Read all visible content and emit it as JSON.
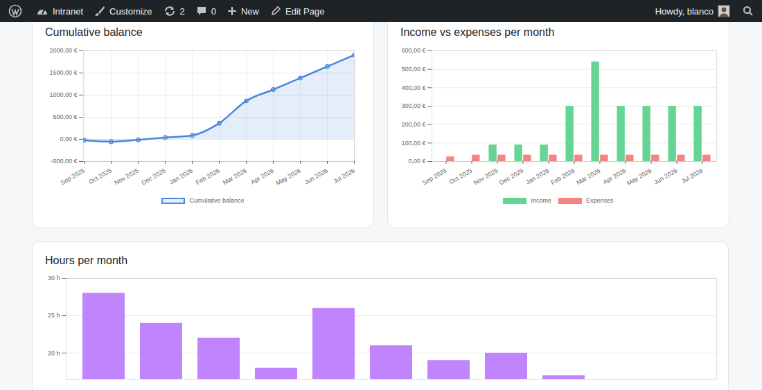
{
  "admin_bar": {
    "items": [
      "Intranet",
      "Customize",
      "2",
      "0",
      "New",
      "Edit Page"
    ],
    "greeting": "Howdy, blanco"
  },
  "chart_data": [
    {
      "type": "area",
      "title": "Cumulative balance",
      "categories": [
        "Sep 2025",
        "Oct 2025",
        "Nov 2025",
        "Dec 2025",
        "Jan 2026",
        "Feb 2026",
        "Mar 2026",
        "Apr 2026",
        "May 2026",
        "Jun 2026",
        "Jul 2026"
      ],
      "series": [
        {
          "name": "Cumulative balance",
          "color": "#4a86e0",
          "values": [
            -20,
            -55,
            -10,
            40,
            90,
            365,
            870,
            1125,
            1385,
            1645,
            1905
          ]
        }
      ],
      "ylim": [
        -500,
        2000
      ],
      "yticks": [
        {
          "value": -500,
          "label": "-500,00 €"
        },
        {
          "value": 0,
          "label": "0,00 €"
        },
        {
          "value": 500,
          "label": "500,00 €"
        },
        {
          "value": 1000,
          "label": "1000,00 €"
        },
        {
          "value": 1500,
          "label": "1500,00 €"
        },
        {
          "value": 2000,
          "label": "2000,00 €"
        }
      ],
      "grid": true,
      "legend": "bottom",
      "marker": "circle"
    },
    {
      "type": "bar",
      "title": "Income vs expenses per month",
      "categories": [
        "Sep 2025",
        "Oct 2025",
        "Nov 2025",
        "Dec 2025",
        "Jan 2026",
        "Feb 2026",
        "Mar 2026",
        "Apr 2026",
        "May 2026",
        "Jun 2026",
        "Jul 2026"
      ],
      "series": [
        {
          "name": "Income",
          "color": "#66d492",
          "values": [
            0,
            0,
            90,
            90,
            90,
            300,
            540,
            300,
            300,
            300,
            300
          ]
        },
        {
          "name": "Expenses",
          "color": "#f58383",
          "values": [
            25,
            35,
            35,
            35,
            35,
            35,
            35,
            35,
            35,
            35,
            35
          ]
        }
      ],
      "ylim": [
        0,
        600
      ],
      "yticks": [
        {
          "value": 0,
          "label": "0,00 €"
        },
        {
          "value": 100,
          "label": "100,00 €"
        },
        {
          "value": 200,
          "label": "200,00 €"
        },
        {
          "value": 300,
          "label": "300,00 €"
        },
        {
          "value": 400,
          "label": "400,00 €"
        },
        {
          "value": 500,
          "label": "500,00 €"
        },
        {
          "value": 600,
          "label": "600,00 €"
        }
      ],
      "grid": true,
      "legend": "bottom"
    },
    {
      "type": "bar",
      "title": "Hours per month",
      "categories": [
        null,
        null,
        null,
        null,
        null,
        null,
        null,
        null,
        null,
        null,
        null
      ],
      "values": [
        28,
        24,
        22,
        18,
        26,
        21,
        19,
        20,
        17,
        null,
        null
      ],
      "color": "#c084fc",
      "ylim": [
        16.5,
        30
      ],
      "yticks": [
        {
          "value": 20,
          "label": "20 h"
        },
        {
          "value": 25,
          "label": "25 h"
        },
        {
          "value": 30,
          "label": "30 h"
        }
      ],
      "grid": true
    }
  ]
}
